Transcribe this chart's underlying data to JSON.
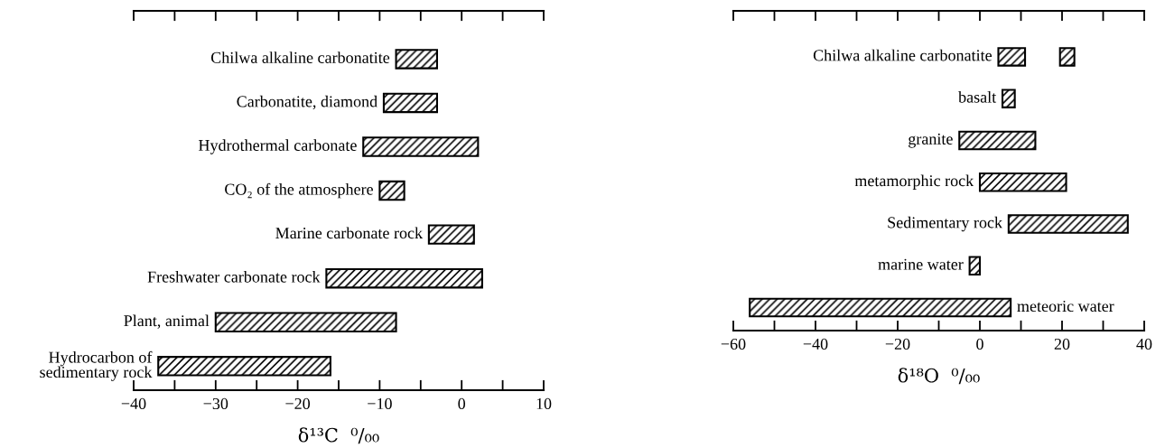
{
  "chart_data": [
    {
      "type": "bar",
      "orientation": "horizontal",
      "xlabel": "δ¹³C  ⁰/₀₀",
      "categories": [
        "Chilwa alkaline carbonatite",
        "Carbonatite, diamond",
        "Hydrothermal carbonate",
        "CO₂ of the atmosphere",
        "Marine carbonate rock",
        "Freshwater carbonate rock",
        "Plant, animal",
        "Hydrocarbon of\nsedimentary rock"
      ],
      "series": [
        {
          "color": "#000000",
          "base": [
            -8,
            -9.5,
            -12,
            -10,
            -4,
            -16.5,
            -30,
            -37
          ],
          "values": [
            5,
            6.5,
            14,
            3,
            5.5,
            19,
            22,
            21
          ]
        }
      ],
      "xlim": [
        -40,
        10
      ],
      "xticks": [
        -40,
        {
          "value": -35,
          "label": null
        },
        -30,
        {
          "value": -25,
          "label": null
        },
        -20,
        {
          "value": -15,
          "label": null
        },
        -10,
        {
          "value": -5,
          "label": null
        },
        0,
        {
          "value": 5,
          "label": null
        },
        10
      ],
      "grid": false,
      "legend": false
    },
    {
      "type": "bar",
      "orientation": "horizontal",
      "xlabel": "δ¹⁸O  ⁰/₀₀",
      "categories": [
        "Chilwa alkaline carbonatite",
        "basalt",
        "granite",
        "metamorphic rock",
        "Sedimentary rock",
        "marine water",
        "meteoric water"
      ],
      "series": [
        {
          "color": "#000000",
          "base": [
            4.5,
            5.5,
            -5,
            0,
            7,
            -2.5,
            -56
          ],
          "values": [
            6.5,
            3,
            18.5,
            21,
            29,
            2.5,
            63.5
          ]
        },
        {
          "color": "#000000",
          "base": [
            19.5,
            null,
            null,
            null,
            null,
            null,
            null
          ],
          "values": [
            3.5,
            null,
            null,
            null,
            null,
            null,
            null
          ]
        }
      ],
      "xlim": [
        -60,
        40
      ],
      "xticks": [
        -60,
        {
          "value": -50,
          "label": null
        },
        -40,
        {
          "value": -30,
          "label": null
        },
        -20,
        {
          "value": -10,
          "label": null
        },
        0,
        {
          "value": 10,
          "label": null
        },
        20,
        {
          "value": 30,
          "label": null
        },
        40
      ],
      "grid": false,
      "legend": false
    }
  ]
}
